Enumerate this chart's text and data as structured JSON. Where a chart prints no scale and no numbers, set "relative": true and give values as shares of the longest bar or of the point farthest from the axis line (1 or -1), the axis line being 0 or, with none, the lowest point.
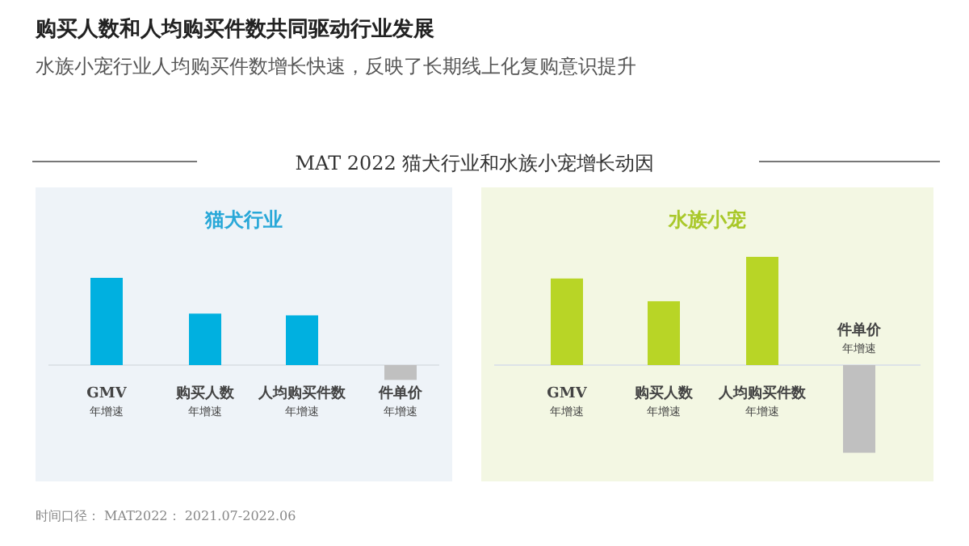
{
  "chart_data": [
    {
      "type": "bar",
      "title": "猫犬行业",
      "relative": true,
      "categories": [
        "GMV",
        "购买人数",
        "人均购买件数",
        "件单价"
      ],
      "values": [
        1,
        0.59,
        0.57,
        -0.17
      ],
      "colors": [
        "#00b0e0",
        "#00b0e0",
        "#00b0e0",
        "#c0c0c0"
      ],
      "annotations": [
        "购买人数和人均购买件数共同驱动行业发展",
        "水族小宠行业人均购买件数增长快速，反映了长期线上化复购意识提升",
        "MAT 2022 猫犬行业和水族小宠增长动因",
        "时间口径： MAT2022： 2021.07-2022.06",
        "年增速",
        "年增速",
        "年增速",
        "年增速"
      ]
    },
    {
      "type": "bar",
      "title": "水族小宠",
      "relative": true,
      "categories": [
        "GMV",
        "购买人数",
        "人均购买件数",
        "件单价"
      ],
      "values": [
        0.8,
        0.59,
        1,
        -0.81
      ],
      "colors": [
        "#b8d526",
        "#b8d526",
        "#b8d526",
        "#c0c0c0"
      ],
      "annotations": [
        "年增速",
        "年增速",
        "年增速",
        "年增速"
      ]
    }
  ]
}
